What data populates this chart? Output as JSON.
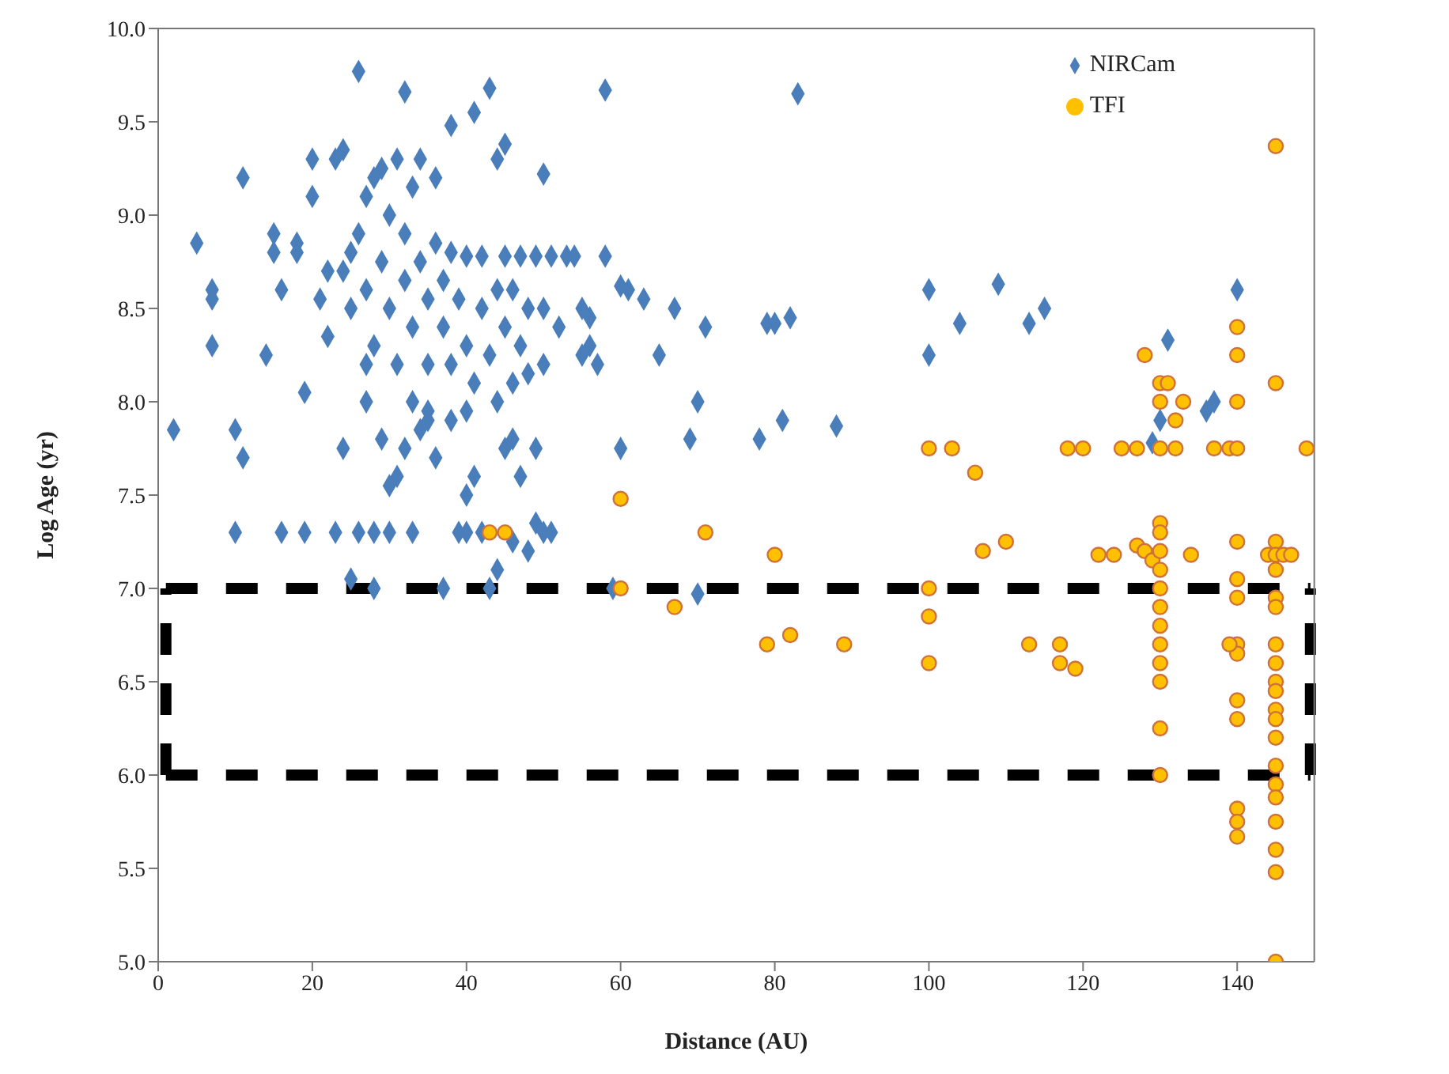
{
  "chart_data": {
    "type": "scatter",
    "xlabel": "Distance (AU)",
    "ylabel": "Log Age (yr)",
    "xlim": [
      0,
      150
    ],
    "xticks": [
      0,
      20,
      40,
      60,
      80,
      100,
      120,
      140
    ],
    "ylim": [
      5,
      10
    ],
    "yticks": [
      {
        "value": 5,
        "label": "5.0"
      },
      5.5,
      {
        "value": 6,
        "label": "6.0"
      },
      6.5,
      {
        "value": 7,
        "label": "7.0"
      },
      7.5,
      {
        "value": 8,
        "label": "8.0"
      },
      8.5,
      {
        "value": 9,
        "label": "9.0"
      },
      9.5,
      {
        "value": 10,
        "label": "10.0"
      }
    ],
    "legend": "top right",
    "grid": false,
    "ref_lines": [
      {
        "axis": "y",
        "value": 7,
        "color": "#000000",
        "line_style": "dashed"
      },
      {
        "axis": "y",
        "value": 6,
        "color": "#000000",
        "line_style": "dashed"
      },
      {
        "axis": "x",
        "value": 1,
        "color": "#000000",
        "line_style": "dashed"
      },
      {
        "axis": "x",
        "value": 149.5,
        "color": "#000000",
        "line_style": "dashed"
      }
    ],
    "series": [
      {
        "name": "NIRCam",
        "color": "#4a7ebb",
        "marker": "diamond",
        "x": [
          2,
          5,
          7,
          7,
          7,
          10,
          10,
          11,
          11,
          14,
          15,
          15,
          16,
          16,
          18,
          18,
          19,
          19,
          20,
          20,
          21,
          22,
          22,
          23,
          23,
          24,
          24,
          25,
          25,
          26,
          26,
          27,
          27,
          28,
          28,
          28,
          29,
          30,
          30,
          31,
          32,
          32,
          33,
          34,
          35,
          36,
          37,
          38,
          38,
          39,
          40,
          41,
          40,
          41,
          42,
          43,
          43,
          44,
          44,
          45,
          45,
          46,
          47,
          48,
          49,
          49,
          50,
          50,
          51,
          53,
          55,
          56,
          57,
          58,
          58,
          59,
          60,
          60,
          61,
          63,
          65,
          67,
          69,
          70,
          70,
          71,
          78,
          79,
          80,
          81,
          82,
          83,
          88,
          100,
          100,
          104,
          109,
          113,
          115,
          129,
          131,
          130,
          136,
          137,
          140,
          24,
          25,
          26,
          27,
          27,
          28,
          29,
          29,
          30,
          30,
          31,
          31,
          32,
          32,
          33,
          33,
          34,
          34,
          35,
          35,
          36,
          36,
          37,
          37,
          38,
          38,
          39,
          40,
          40,
          41,
          42,
          42,
          43,
          44,
          45,
          45,
          46,
          46,
          47,
          47,
          48,
          48,
          49,
          50,
          50,
          51,
          52,
          54,
          55,
          56,
          33,
          35,
          40,
          44,
          46
        ],
        "values": [
          7.85,
          8.85,
          8.6,
          8.55,
          8.3,
          7.3,
          7.85,
          9.2,
          7.7,
          8.25,
          8.8,
          8.9,
          8.6,
          7.3,
          8.85,
          8.8,
          7.3,
          8.05,
          9.3,
          9.1,
          8.55,
          8.35,
          8.7,
          7.3,
          9.3,
          9.35,
          7.75,
          8.8,
          7.05,
          9.77,
          7.3,
          8.0,
          8.2,
          9.2,
          7.0,
          7.3,
          7.8,
          7.3,
          7.55,
          7.6,
          9.66,
          7.75,
          7.3,
          7.85,
          7.9,
          7.7,
          7.0,
          7.9,
          9.48,
          7.3,
          7.3,
          9.55,
          7.5,
          7.6,
          7.3,
          9.68,
          7.0,
          7.1,
          9.3,
          9.38,
          7.75,
          7.25,
          7.6,
          7.2,
          7.35,
          7.75,
          7.3,
          9.22,
          7.3,
          8.78,
          8.5,
          8.3,
          8.2,
          9.67,
          8.78,
          7.0,
          7.75,
          8.62,
          8.6,
          8.55,
          8.25,
          8.5,
          7.8,
          8.0,
          6.97,
          8.4,
          7.8,
          8.42,
          8.42,
          7.9,
          8.45,
          9.65,
          7.87,
          8.6,
          8.25,
          8.42,
          8.63,
          8.42,
          8.5,
          7.78,
          8.33,
          7.9,
          7.95,
          8.0,
          8.6,
          8.7,
          8.5,
          8.9,
          9.1,
          8.6,
          8.3,
          9.25,
          8.75,
          8.5,
          9.0,
          9.3,
          8.2,
          8.65,
          8.9,
          9.15,
          8.4,
          9.3,
          8.75,
          8.55,
          8.2,
          9.2,
          8.85,
          8.4,
          8.65,
          8.2,
          8.8,
          8.55,
          8.78,
          8.3,
          8.1,
          8.78,
          8.5,
          8.25,
          8.6,
          8.78,
          8.4,
          8.1,
          8.6,
          8.3,
          8.78,
          8.15,
          8.5,
          8.78,
          8.5,
          8.2,
          8.78,
          8.4,
          8.78,
          8.25,
          8.45,
          8.0,
          7.95,
          7.95,
          8.0,
          7.8
        ]
      },
      {
        "name": "TFI",
        "color": "#ffc000",
        "marker": "circle",
        "x": [
          43,
          45,
          60,
          60,
          67,
          71,
          79,
          80,
          82,
          89,
          100,
          100,
          100,
          100,
          103,
          106,
          107,
          110,
          113,
          117,
          117,
          118,
          119,
          120,
          122,
          124,
          125,
          127,
          127,
          128,
          128,
          129,
          130,
          130,
          130,
          130,
          130,
          130,
          130,
          130,
          130,
          130,
          130,
          130,
          130,
          130,
          130,
          131,
          132,
          132,
          133,
          134,
          137,
          139,
          140,
          140,
          140,
          140,
          140,
          140,
          140,
          140,
          140,
          140,
          140,
          140,
          140,
          140,
          139,
          144,
          145,
          145,
          145,
          145,
          145,
          145,
          145,
          145,
          145,
          145,
          145,
          145,
          145,
          145,
          145,
          145,
          145,
          145,
          145,
          145,
          145,
          146,
          147,
          149
        ],
        "values": [
          7.3,
          7.3,
          7.48,
          7.0,
          6.9,
          7.3,
          6.7,
          7.18,
          6.75,
          6.7,
          7.75,
          7.0,
          6.85,
          6.6,
          7.75,
          7.62,
          7.2,
          7.25,
          6.7,
          6.6,
          6.7,
          7.75,
          6.57,
          7.75,
          7.18,
          7.18,
          7.75,
          7.75,
          7.23,
          8.25,
          7.2,
          7.15,
          7.75,
          8.1,
          8.0,
          7.35,
          7.3,
          7.2,
          7.1,
          7.0,
          6.9,
          6.8,
          6.7,
          6.6,
          6.5,
          6.25,
          6.0,
          8.1,
          7.9,
          7.75,
          8.0,
          7.18,
          7.75,
          7.75,
          8.4,
          8.25,
          8.0,
          7.75,
          7.25,
          7.05,
          6.95,
          6.7,
          6.65,
          6.4,
          6.3,
          5.82,
          5.75,
          5.67,
          6.7,
          7.18,
          9.37,
          8.1,
          7.25,
          7.18,
          7.1,
          6.95,
          6.9,
          6.7,
          6.6,
          6.5,
          6.45,
          6.35,
          6.3,
          6.2,
          6.05,
          5.95,
          5.88,
          5.75,
          5.6,
          5.48,
          5.0,
          7.18,
          7.18,
          7.75
        ]
      }
    ]
  }
}
